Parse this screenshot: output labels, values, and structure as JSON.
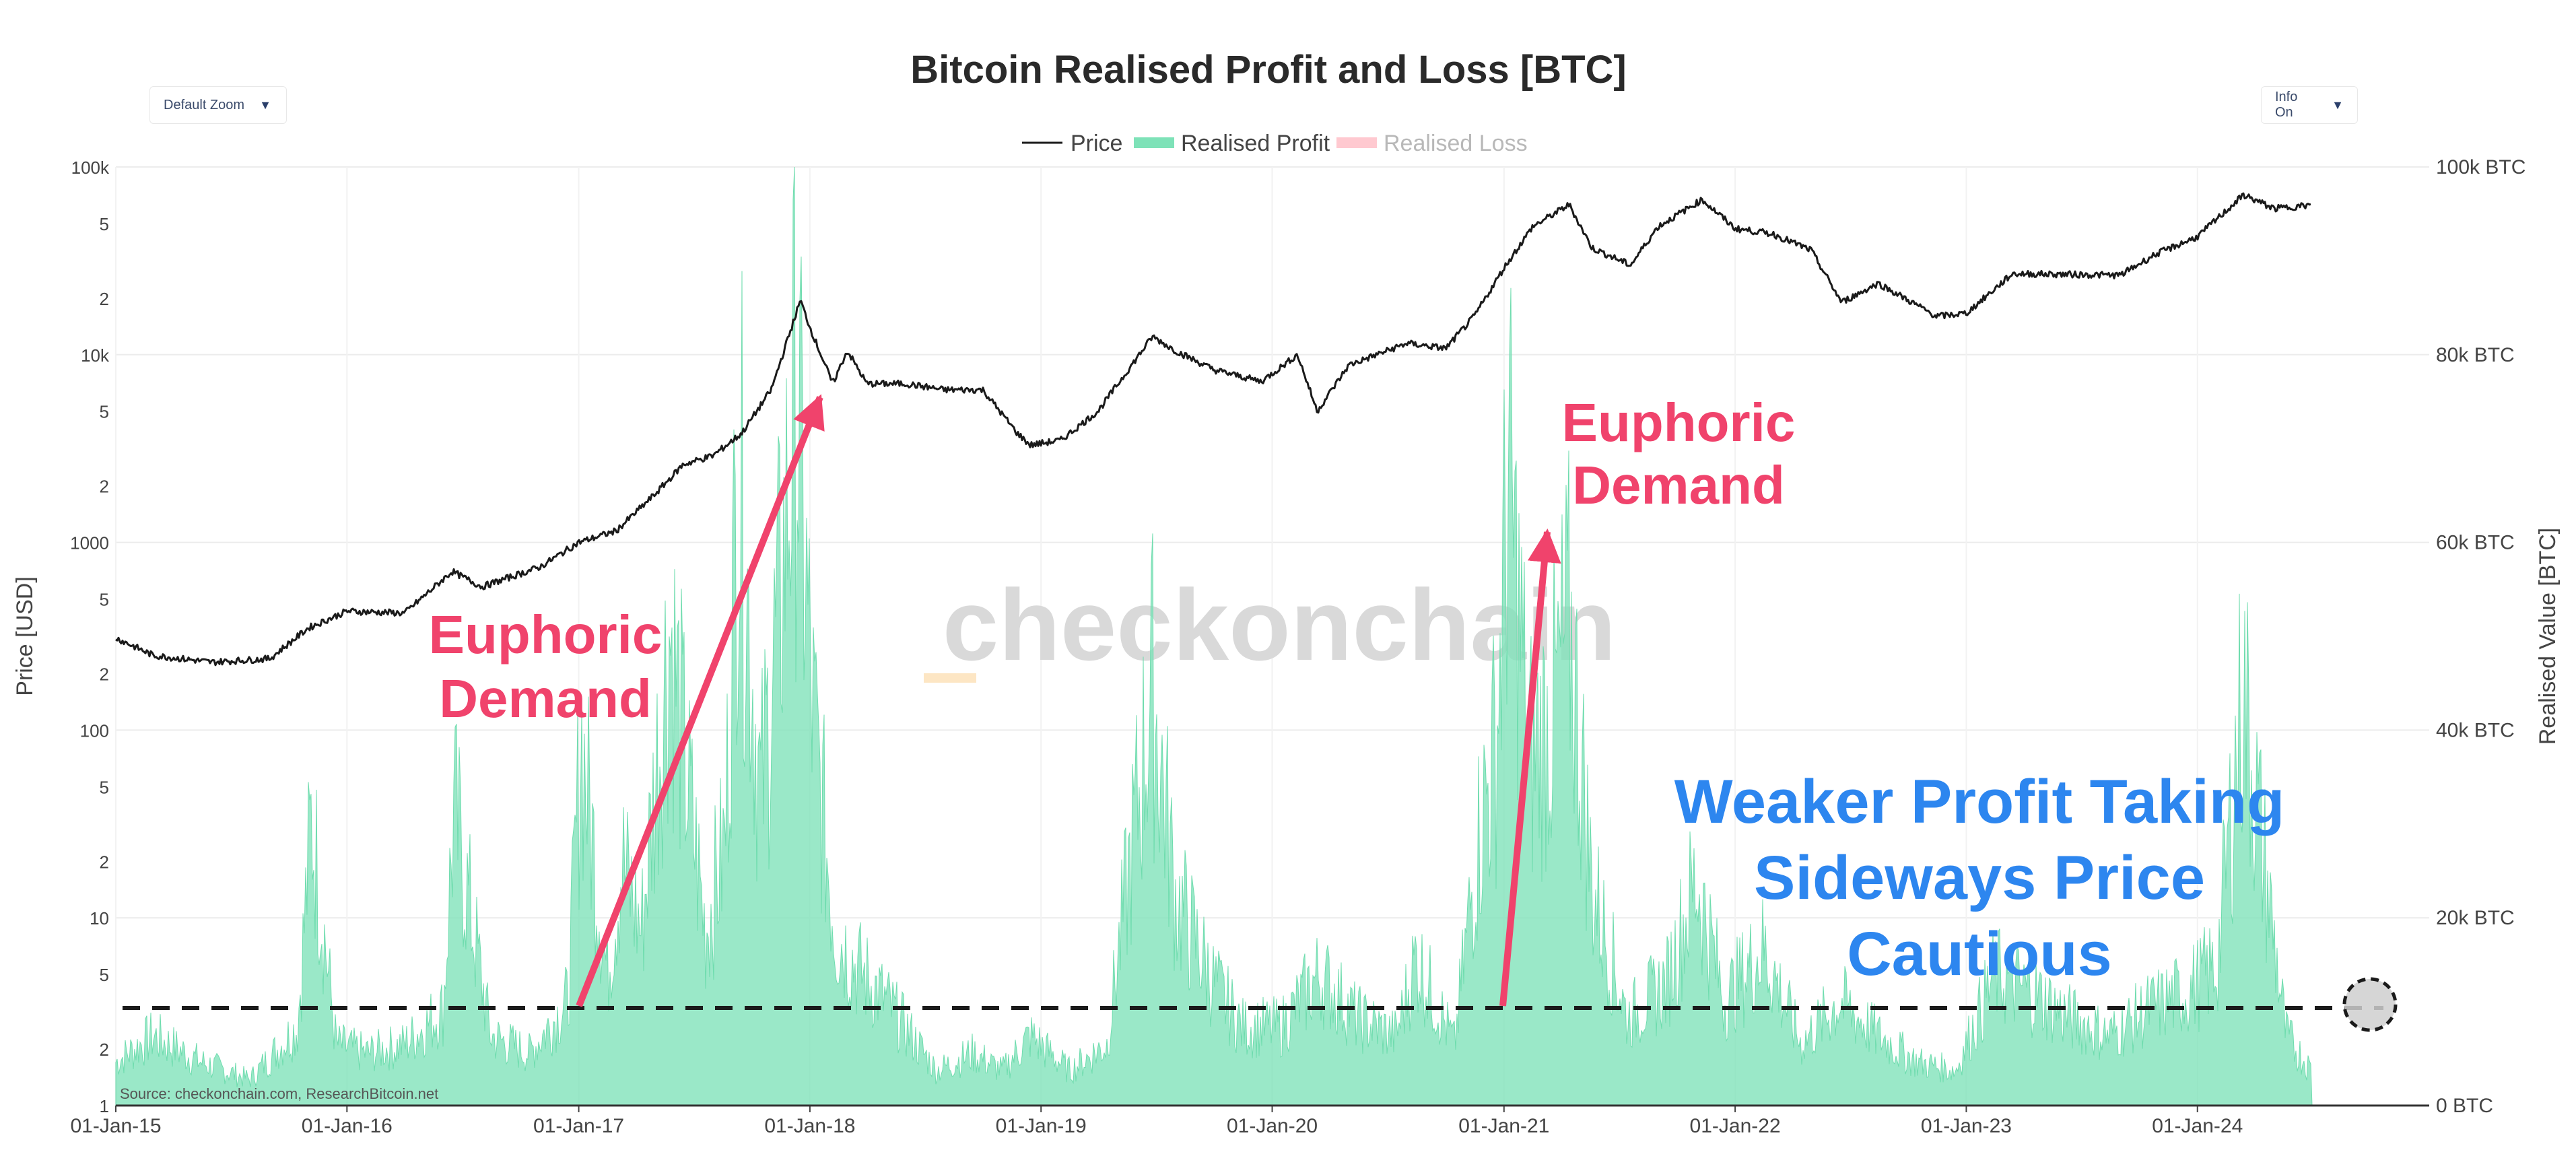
{
  "controls": {
    "zoom_label": "Default Zoom",
    "info_label": "Info On",
    "caret": "▼"
  },
  "watermark": "checkonchain",
  "source": "Source: checkonchain.com, ResearchBitcoin.net",
  "annotations": {
    "euphoric_1_line1": "Euphoric",
    "euphoric_1_line2": "Demand",
    "euphoric_2_line1": "Euphoric",
    "euphoric_2_line2": "Demand",
    "weaker_line1": "Weaker Profit Taking",
    "weaker_line2": "Sideways Price",
    "weaker_line3": "Cautious"
  },
  "colors": {
    "price": "#1a1a1a",
    "profit": "#7ee2b8",
    "loss": "#ffc9d0",
    "accent_red": "#f0436c",
    "accent_blue": "#2d86ef",
    "grid": "#ececec"
  },
  "chart_data": {
    "type": "area",
    "title": "Bitcoin Realised Profit and Loss [BTC]",
    "ylabel_left": "Price [USD]",
    "ylabel_right": "Realised Value [BTC]",
    "y_left_scale": "log",
    "y_left_range": [
      1,
      100000
    ],
    "y_left_ticks": [
      "1",
      "2",
      "5",
      "10",
      "2",
      "5",
      "100",
      "2",
      "5",
      "1000",
      "2",
      "5",
      "10k",
      "2",
      "5",
      "100k"
    ],
    "y_right_range": [
      0,
      100000
    ],
    "y_right_ticks": [
      "0 BTC",
      "20k BTC",
      "40k BTC",
      "60k BTC",
      "80k BTC",
      "100k BTC"
    ],
    "x_tick_labels": [
      "01-Jan-15",
      "01-Jan-16",
      "01-Jan-17",
      "01-Jan-18",
      "01-Jan-19",
      "01-Jan-20",
      "01-Jan-21",
      "01-Jan-22",
      "01-Jan-23",
      "01-Jan-24"
    ],
    "legend": [
      "Price",
      "Realised Profit",
      "Realised Loss"
    ],
    "legend_position": "top-center",
    "grid": true,
    "reference_line_btc": 10500,
    "series": [
      {
        "name": "Price",
        "axis": "left",
        "x": [
          "2015-01-01",
          "2015-03-01",
          "2015-06-01",
          "2015-09-01",
          "2015-11-01",
          "2016-01-01",
          "2016-04-01",
          "2016-06-15",
          "2016-08-01",
          "2016-11-01",
          "2017-01-01",
          "2017-03-01",
          "2017-05-01",
          "2017-06-15",
          "2017-08-01",
          "2017-09-15",
          "2017-11-01",
          "2017-12-17",
          "2018-01-01",
          "2018-02-06",
          "2018-03-01",
          "2018-04-01",
          "2018-06-01",
          "2018-08-01",
          "2018-10-01",
          "2018-11-25",
          "2018-12-15",
          "2019-02-01",
          "2019-04-01",
          "2019-06-26",
          "2019-08-01",
          "2019-10-01",
          "2019-12-15",
          "2020-02-10",
          "2020-03-12",
          "2020-05-01",
          "2020-08-01",
          "2020-10-01",
          "2020-11-15",
          "2021-01-01",
          "2021-02-15",
          "2021-04-14",
          "2021-05-20",
          "2021-07-20",
          "2021-09-01",
          "2021-11-10",
          "2022-01-01",
          "2022-03-01",
          "2022-05-01",
          "2022-06-18",
          "2022-08-15",
          "2022-11-15",
          "2023-01-01",
          "2023-03-15",
          "2023-06-01",
          "2023-09-01",
          "2023-10-25",
          "2024-01-01",
          "2024-03-14",
          "2024-05-01",
          "2024-06-30"
        ],
        "values": [
          310,
          250,
          230,
          240,
          350,
          430,
          420,
          700,
          580,
          740,
          1000,
          1150,
          1800,
          2600,
          2900,
          3800,
          6500,
          19500,
          14000,
          7000,
          10500,
          7000,
          7000,
          6500,
          6500,
          3800,
          3300,
          3500,
          5000,
          12500,
          10500,
          8300,
          7200,
          10000,
          5000,
          8800,
          11500,
          10800,
          16000,
          29000,
          48000,
          63000,
          37000,
          30000,
          48000,
          67000,
          47000,
          44000,
          36000,
          19000,
          24000,
          16000,
          16600,
          27000,
          26800,
          26500,
          34000,
          42500,
          71000,
          60000,
          62700
        ]
      },
      {
        "name": "Realised Profit",
        "axis": "right",
        "x": [
          "2015-01-01",
          "2015-03-01",
          "2015-05-15",
          "2015-08-01",
          "2015-10-15",
          "2015-11-06",
          "2015-12-15",
          "2016-02-01",
          "2016-04-01",
          "2016-06-01",
          "2016-06-18",
          "2016-08-15",
          "2016-10-15",
          "2016-12-15",
          "2017-01-05",
          "2017-02-15",
          "2017-03-10",
          "2017-04-10",
          "2017-05-25",
          "2017-06-20",
          "2017-07-20",
          "2017-08-20",
          "2017-09-10",
          "2017-10-15",
          "2017-11-15",
          "2017-12-10",
          "2018-01-05",
          "2018-02-10",
          "2018-03-15",
          "2018-05-01",
          "2018-07-20",
          "2018-09-15",
          "2018-11-01",
          "2018-12-15",
          "2019-02-15",
          "2019-04-15",
          "2019-06-26",
          "2019-08-01",
          "2019-10-01",
          "2019-11-15",
          "2020-01-15",
          "2020-03-15",
          "2020-05-15",
          "2020-07-15",
          "2020-08-15",
          "2020-10-15",
          "2020-11-20",
          "2020-12-20",
          "2021-01-08",
          "2021-02-10",
          "2021-03-15",
          "2021-04-15",
          "2021-05-20",
          "2021-07-15",
          "2021-09-15",
          "2021-11-01",
          "2021-12-15",
          "2022-02-15",
          "2022-04-15",
          "2022-06-15",
          "2022-08-15",
          "2022-10-15",
          "2022-12-15",
          "2023-02-15",
          "2023-04-15",
          "2023-06-15",
          "2023-08-15",
          "2023-10-15",
          "2023-12-15",
          "2024-02-01",
          "2024-03-13",
          "2024-04-15",
          "2024-05-20",
          "2024-06-30"
        ],
        "values": [
          5000,
          8000,
          5000,
          3000,
          9000,
          33000,
          7000,
          6000,
          7000,
          11000,
          34000,
          8000,
          6000,
          12000,
          42000,
          15000,
          28000,
          20000,
          55000,
          38000,
          20000,
          30000,
          75000,
          35000,
          58000,
          82000,
          45000,
          20000,
          16000,
          12000,
          4000,
          6000,
          4000,
          8000,
          4000,
          7000,
          48000,
          24000,
          14000,
          9000,
          9000,
          15000,
          10000,
          8000,
          17000,
          7000,
          30000,
          42000,
          72000,
          40000,
          44000,
          55000,
          25000,
          10000,
          14000,
          26000,
          12000,
          18000,
          7000,
          12000,
          8000,
          5000,
          4000,
          15000,
          13000,
          10000,
          8000,
          11000,
          13000,
          16000,
          48000,
          28000,
          8000,
          4000
        ]
      },
      {
        "name": "Realised Loss",
        "axis": "right",
        "values": []
      }
    ]
  }
}
